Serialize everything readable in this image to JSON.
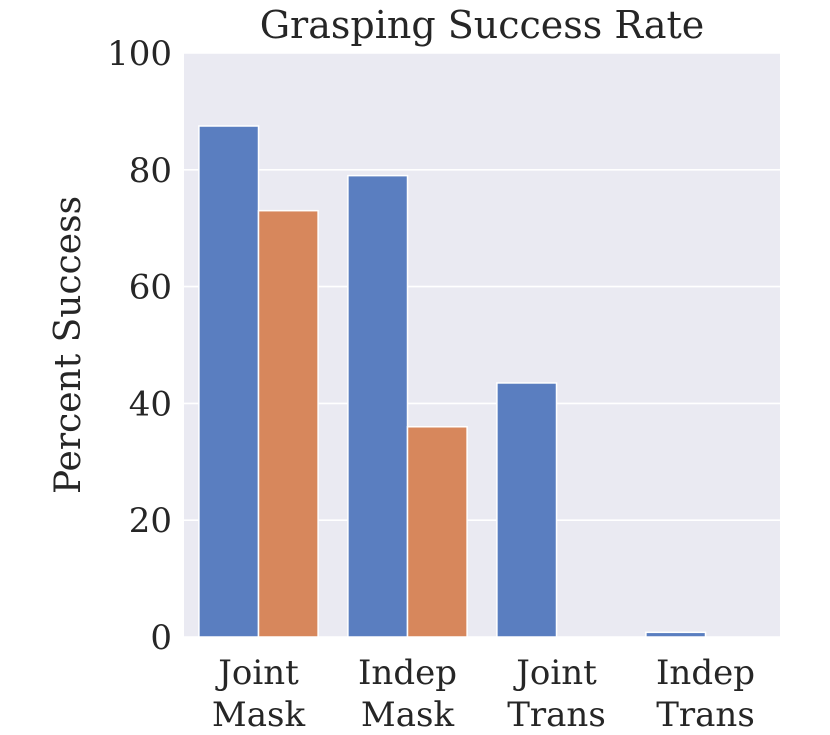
{
  "chart_data": {
    "type": "bar",
    "title": "Grasping Success Rate",
    "xlabel": "",
    "ylabel": "Percent Success",
    "ylim": [
      0,
      100
    ],
    "yticks": [
      "0",
      "20",
      "40",
      "60",
      "80",
      "100"
    ],
    "categories": [
      [
        "Joint",
        "Mask"
      ],
      [
        "Indep",
        "Mask"
      ],
      [
        "Joint",
        "Trans"
      ],
      [
        "Indep",
        "Trans"
      ]
    ],
    "series": [
      {
        "values": [
          87.5,
          79,
          43.5,
          0.8
        ],
        "color": "#5a7ec0"
      },
      {
        "values": [
          73,
          36,
          0,
          0
        ],
        "color": "#d7875c"
      }
    ],
    "grid": true,
    "background": "#eaeaf2",
    "legend": "none"
  }
}
